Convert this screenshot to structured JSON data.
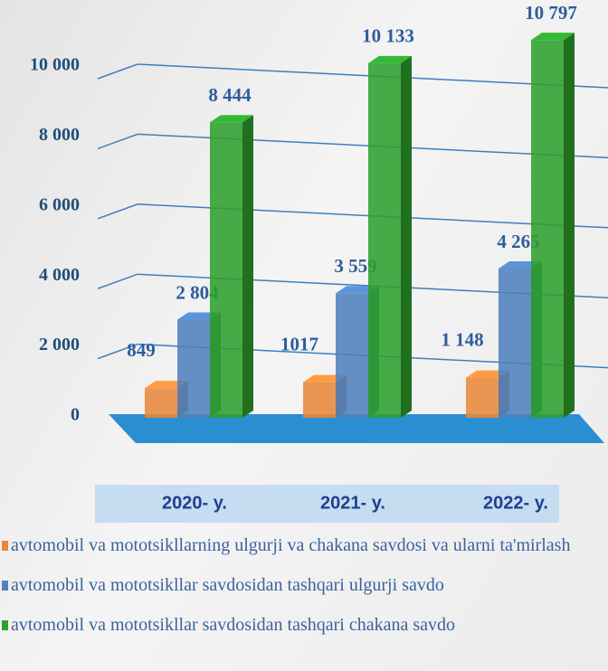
{
  "chart_data": {
    "type": "bar3d",
    "categories": [
      "2020- y.",
      "2021- y.",
      "2022- y."
    ],
    "series": [
      {
        "name": "avtomobil va mototsikllarning ulgurji va chakana savdosi va ularni ta'mirlash",
        "color": "#e8883a",
        "values": [
          849,
          1017,
          1148
        ],
        "value_labels": [
          "849",
          "1017",
          "1 148"
        ]
      },
      {
        "name": "avtomobil va mototsikllar savdosidan tashqari ulgurji savdo",
        "color": "#4f81bd",
        "values": [
          2804,
          3559,
          4265
        ],
        "value_labels": [
          "2 804",
          "3 559",
          "4 265"
        ]
      },
      {
        "name": "avtomobil va mototsikllar savdosidan tashqari chakana savdo",
        "color": "#2ea02e",
        "values": [
          8444,
          10133,
          10797
        ],
        "value_labels": [
          "8 444",
          "10 133",
          "10 797"
        ]
      }
    ],
    "ylim": [
      0,
      10000
    ],
    "yticks": [
      0,
      {
        "value": 2000,
        "label": "2 000"
      },
      {
        "value": 4000,
        "label": "4 000"
      },
      {
        "value": 6000,
        "label": "6 000"
      },
      {
        "value": 8000,
        "label": "8 000"
      },
      {
        "value": 10000,
        "label": "10 000"
      }
    ],
    "grid": true
  }
}
